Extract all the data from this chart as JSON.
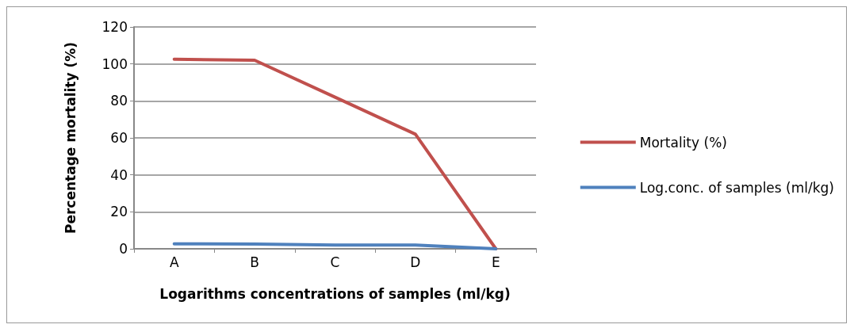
{
  "chart_data": {
    "type": "line",
    "xlabel": "Logarithms concentrations of samples (ml/kg)",
    "ylabel": "Percentage mortality (%)",
    "categories": [
      "A",
      "B",
      "C",
      "D",
      "E"
    ],
    "series": [
      {
        "name": "Mortality (%)",
        "color": "#c0504d",
        "values": [
          102.5,
          102,
          82,
          62,
          0
        ]
      },
      {
        "name": "Log.conc. of samples (ml/kg)",
        "color": "#4f81bd",
        "values": [
          2.7,
          2.6,
          2,
          2,
          0
        ]
      }
    ],
    "ylim": [
      0,
      120
    ],
    "yticks": [
      0,
      20,
      40,
      60,
      80,
      100,
      120
    ],
    "grid": "y",
    "legend": "right",
    "marker": "none",
    "line_style": "solid"
  }
}
